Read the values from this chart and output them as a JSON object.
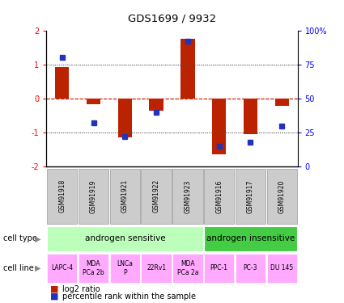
{
  "title": "GDS1699 / 9932",
  "samples": [
    "GSM91918",
    "GSM91919",
    "GSM91921",
    "GSM91922",
    "GSM91923",
    "GSM91916",
    "GSM91917",
    "GSM91920"
  ],
  "log2_ratio": [
    0.93,
    -0.18,
    -1.15,
    -0.35,
    1.75,
    -1.65,
    -1.05,
    -0.22
  ],
  "percentile_rank": [
    80,
    32,
    22,
    40,
    92,
    15,
    18,
    30
  ],
  "cell_type_groups": [
    {
      "label": "androgen sensitive",
      "start": 0,
      "end": 4,
      "color": "#bbffbb"
    },
    {
      "label": "androgen insensitive",
      "start": 5,
      "end": 7,
      "color": "#44cc44"
    }
  ],
  "cell_lines": [
    "LAPC-4",
    "MDA\nPCa 2b",
    "LNCa\nP",
    "22Rv1",
    "MDA\nPCa 2a",
    "PPC-1",
    "PC-3",
    "DU 145"
  ],
  "cell_line_color": "#ffaaff",
  "bar_color": "#bb2200",
  "dot_color": "#2233bb",
  "sample_box_color": "#cccccc",
  "sample_box_border": "#999999",
  "ylim_left": [
    -2,
    2
  ],
  "ylim_right": [
    0,
    100
  ],
  "yticks_left": [
    -2,
    -1,
    0,
    1,
    2
  ],
  "yticks_right": [
    0,
    25,
    50,
    75,
    100
  ],
  "ytick_labels_right": [
    "0",
    "25",
    "50",
    "75",
    "100%"
  ],
  "legend_red": "log2 ratio",
  "legend_blue": "percentile rank within the sample",
  "zero_line_color": "#cc2200",
  "dotted_line_color": "#555555",
  "cell_type_label": "cell type",
  "cell_line_label": "cell line"
}
